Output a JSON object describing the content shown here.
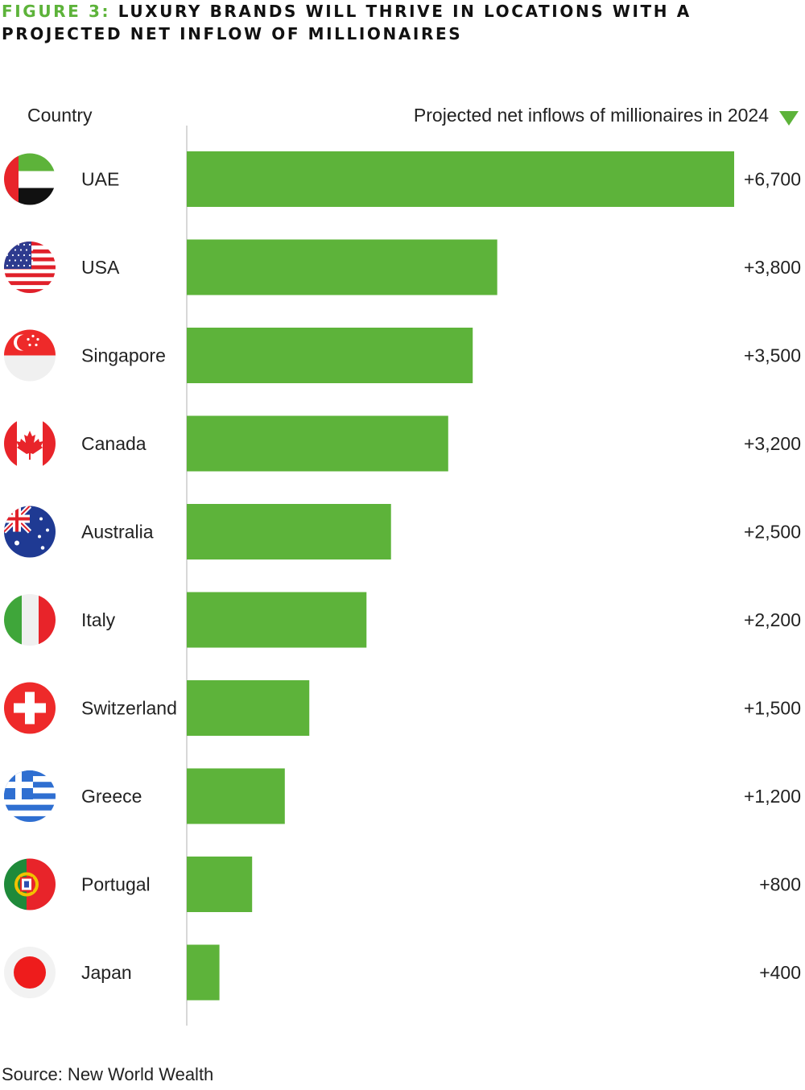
{
  "header": {
    "figure_label": "FIGURE 3:",
    "title_line1": "LUXURY BRANDS WILL THRIVE IN LOCATIONS WITH A",
    "title_line2": "PROJECTED NET INFLOW OF MILLIONAIRES",
    "col_country": "Country",
    "col_measure": "Projected net inflows of millionaires in 2024"
  },
  "colors": {
    "accent": "#5db33a",
    "bar": "#5db33a",
    "axis": "#cccccc"
  },
  "chart_data": {
    "type": "bar",
    "orientation": "horizontal",
    "categories": [
      "UAE",
      "USA",
      "Singapore",
      "Canada",
      "Australia",
      "Italy",
      "Switzerland",
      "Greece",
      "Portugal",
      "Japan"
    ],
    "values": [
      6700,
      3800,
      3500,
      3200,
      2500,
      2200,
      1500,
      1200,
      800,
      400
    ],
    "value_labels": [
      "+6,700",
      "+3,800",
      "+3,500",
      "+3,200",
      "+2,500",
      "+2,200",
      "+1,500",
      "+1,200",
      "+800",
      "+400"
    ],
    "flag_icons": [
      "uae-flag-icon",
      "usa-flag-icon",
      "singapore-flag-icon",
      "canada-flag-icon",
      "australia-flag-icon",
      "italy-flag-icon",
      "switzerland-flag-icon",
      "greece-flag-icon",
      "portugal-flag-icon",
      "japan-flag-icon"
    ],
    "xlim": [
      0,
      6700
    ],
    "grid": false,
    "legend": "none"
  },
  "footer": {
    "source": "Source: New World Wealth"
  }
}
